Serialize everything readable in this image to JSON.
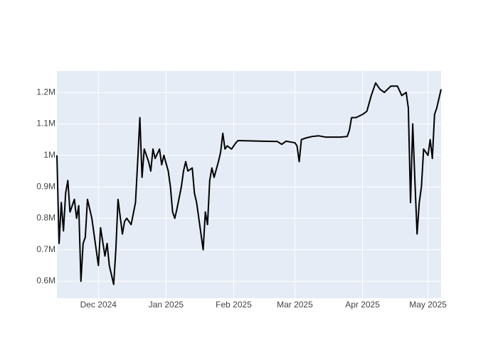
{
  "chart_data": {
    "type": "line",
    "x": [
      "2024-11-12",
      "2024-11-13",
      "2024-11-14",
      "2024-11-15",
      "2024-11-16",
      "2024-11-17",
      "2024-11-18",
      "2024-11-20",
      "2024-11-21",
      "2024-11-22",
      "2024-11-23",
      "2024-11-24",
      "2024-11-25",
      "2024-11-26",
      "2024-11-28",
      "2024-11-29",
      "2024-11-30",
      "2024-12-01",
      "2024-12-02",
      "2024-12-04",
      "2024-12-05",
      "2024-12-06",
      "2024-12-08",
      "2024-12-09",
      "2024-12-10",
      "2024-12-12",
      "2024-12-13",
      "2024-12-14",
      "2024-12-16",
      "2024-12-18",
      "2024-12-19",
      "2024-12-20",
      "2024-12-21",
      "2024-12-22",
      "2024-12-24",
      "2024-12-25",
      "2024-12-26",
      "2024-12-27",
      "2024-12-29",
      "2024-12-30",
      "2024-12-31",
      "2025-01-02",
      "2025-01-03",
      "2025-01-04",
      "2025-01-05",
      "2025-01-06",
      "2025-01-08",
      "2025-01-09",
      "2025-01-10",
      "2025-01-11",
      "2025-01-13",
      "2025-01-14",
      "2025-01-15",
      "2025-01-16",
      "2025-01-18",
      "2025-01-19",
      "2025-01-20",
      "2025-01-21",
      "2025-01-22",
      "2025-01-23",
      "2025-01-25",
      "2025-01-26",
      "2025-01-27",
      "2025-01-28",
      "2025-01-29",
      "2025-01-31",
      "2025-02-02",
      "2025-02-03",
      "2025-02-08",
      "2025-02-14",
      "2025-02-21",
      "2025-02-23",
      "2025-02-25",
      "2025-03-01",
      "2025-03-02",
      "2025-03-03",
      "2025-03-04",
      "2025-03-06",
      "2025-03-09",
      "2025-03-12",
      "2025-03-15",
      "2025-03-22",
      "2025-03-25",
      "2025-03-26",
      "2025-03-27",
      "2025-03-29",
      "2025-04-01",
      "2025-04-03",
      "2025-04-05",
      "2025-04-07",
      "2025-04-09",
      "2025-04-11",
      "2025-04-14",
      "2025-04-17",
      "2025-04-19",
      "2025-04-21",
      "2025-04-22",
      "2025-04-23",
      "2025-04-24",
      "2025-04-25",
      "2025-04-26",
      "2025-04-27",
      "2025-04-28",
      "2025-04-29",
      "2025-05-01",
      "2025-05-02",
      "2025-05-03",
      "2025-05-04",
      "2025-05-05",
      "2025-05-06",
      "2025-05-07"
    ],
    "values": [
      1000000,
      720000,
      850000,
      760000,
      880000,
      920000,
      820000,
      860000,
      800000,
      840000,
      600000,
      720000,
      740000,
      860000,
      800000,
      750000,
      700000,
      650000,
      770000,
      680000,
      720000,
      650000,
      590000,
      700000,
      860000,
      750000,
      790000,
      800000,
      780000,
      850000,
      980000,
      1120000,
      930000,
      1020000,
      980000,
      950000,
      1020000,
      990000,
      1020000,
      970000,
      1000000,
      950000,
      900000,
      820000,
      800000,
      830000,
      900000,
      950000,
      980000,
      950000,
      960000,
      880000,
      850000,
      800000,
      700000,
      820000,
      780000,
      920000,
      960000,
      930000,
      980000,
      1010000,
      1070000,
      1020000,
      1030000,
      1020000,
      1040000,
      1047000,
      1046000,
      1045000,
      1044000,
      1035000,
      1045000,
      1040000,
      1030000,
      980000,
      1050000,
      1055000,
      1060000,
      1062000,
      1058000,
      1058000,
      1060000,
      1080000,
      1120000,
      1120000,
      1130000,
      1140000,
      1190000,
      1230000,
      1210000,
      1200000,
      1220000,
      1220000,
      1190000,
      1200000,
      1150000,
      850000,
      1100000,
      920000,
      750000,
      850000,
      900000,
      1020000,
      1000000,
      1050000,
      990000,
      1130000,
      1150000,
      1180000,
      1210000
    ],
    "color": "#000000",
    "xlim": [
      "2024-11-12",
      "2025-05-07"
    ],
    "xticks": [
      {
        "value": "2024-12-01",
        "label": "Dec 2024"
      },
      {
        "value": "2025-01-01",
        "label": "Jan 2025"
      },
      {
        "value": "2025-02-01",
        "label": "Feb 2025"
      },
      {
        "value": "2025-03-01",
        "label": "Mar 2025"
      },
      {
        "value": "2025-04-01",
        "label": "Apr 2025"
      },
      {
        "value": "2025-05-01",
        "label": "May 2025"
      }
    ],
    "ylim": [
      546000,
      1268000
    ],
    "yticks": [
      {
        "value": 600000,
        "label": "0.6M"
      },
      {
        "value": 700000,
        "label": "0.7M"
      },
      {
        "value": 800000,
        "label": "0.8M"
      },
      {
        "value": 900000,
        "label": "0.9M"
      },
      {
        "value": 1000000,
        "label": "1M"
      },
      {
        "value": 1100000,
        "label": "1.1M"
      },
      {
        "value": 1200000,
        "label": "1.2M"
      }
    ],
    "grid": true
  }
}
